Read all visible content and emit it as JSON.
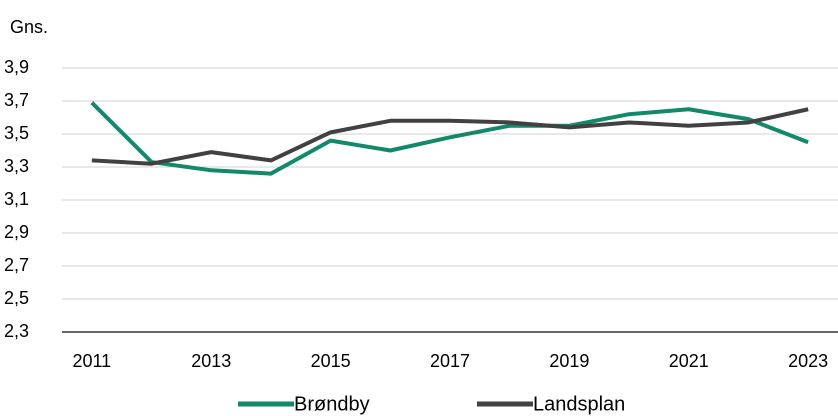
{
  "chart_data": {
    "type": "line",
    "y_label": "Gns.",
    "x": [
      2011,
      2012,
      2013,
      2014,
      2015,
      2016,
      2017,
      2018,
      2019,
      2020,
      2021,
      2022,
      2023
    ],
    "xlim": [
      2010.5,
      2023.5
    ],
    "xticks": [
      2011,
      2013,
      2015,
      2017,
      2019,
      2021,
      2023
    ],
    "ylim": [
      2.3,
      3.9
    ],
    "yticks": [
      {
        "value": 2.3,
        "label": "2,3"
      },
      {
        "value": 2.5,
        "label": "2,5"
      },
      {
        "value": 2.7,
        "label": "2,7"
      },
      {
        "value": 2.9,
        "label": "2,9"
      },
      {
        "value": 3.1,
        "label": "3,1"
      },
      {
        "value": 3.3,
        "label": "3,3"
      },
      {
        "value": 3.5,
        "label": "3,5"
      },
      {
        "value": 3.7,
        "label": "3,7"
      },
      {
        "value": 3.9,
        "label": "3,9"
      }
    ],
    "grid": true,
    "legend": "bottom",
    "series": [
      {
        "name": "Brøndby",
        "color": "#11896a",
        "values": [
          3.69,
          3.33,
          3.28,
          3.26,
          3.46,
          3.4,
          3.48,
          3.55,
          3.55,
          3.62,
          3.65,
          3.59,
          3.45
        ]
      },
      {
        "name": "Landsplan",
        "color": "#414141",
        "values": [
          3.34,
          3.32,
          3.39,
          3.34,
          3.51,
          3.58,
          3.58,
          3.57,
          3.54,
          3.57,
          3.55,
          3.57,
          3.65
        ]
      }
    ]
  }
}
